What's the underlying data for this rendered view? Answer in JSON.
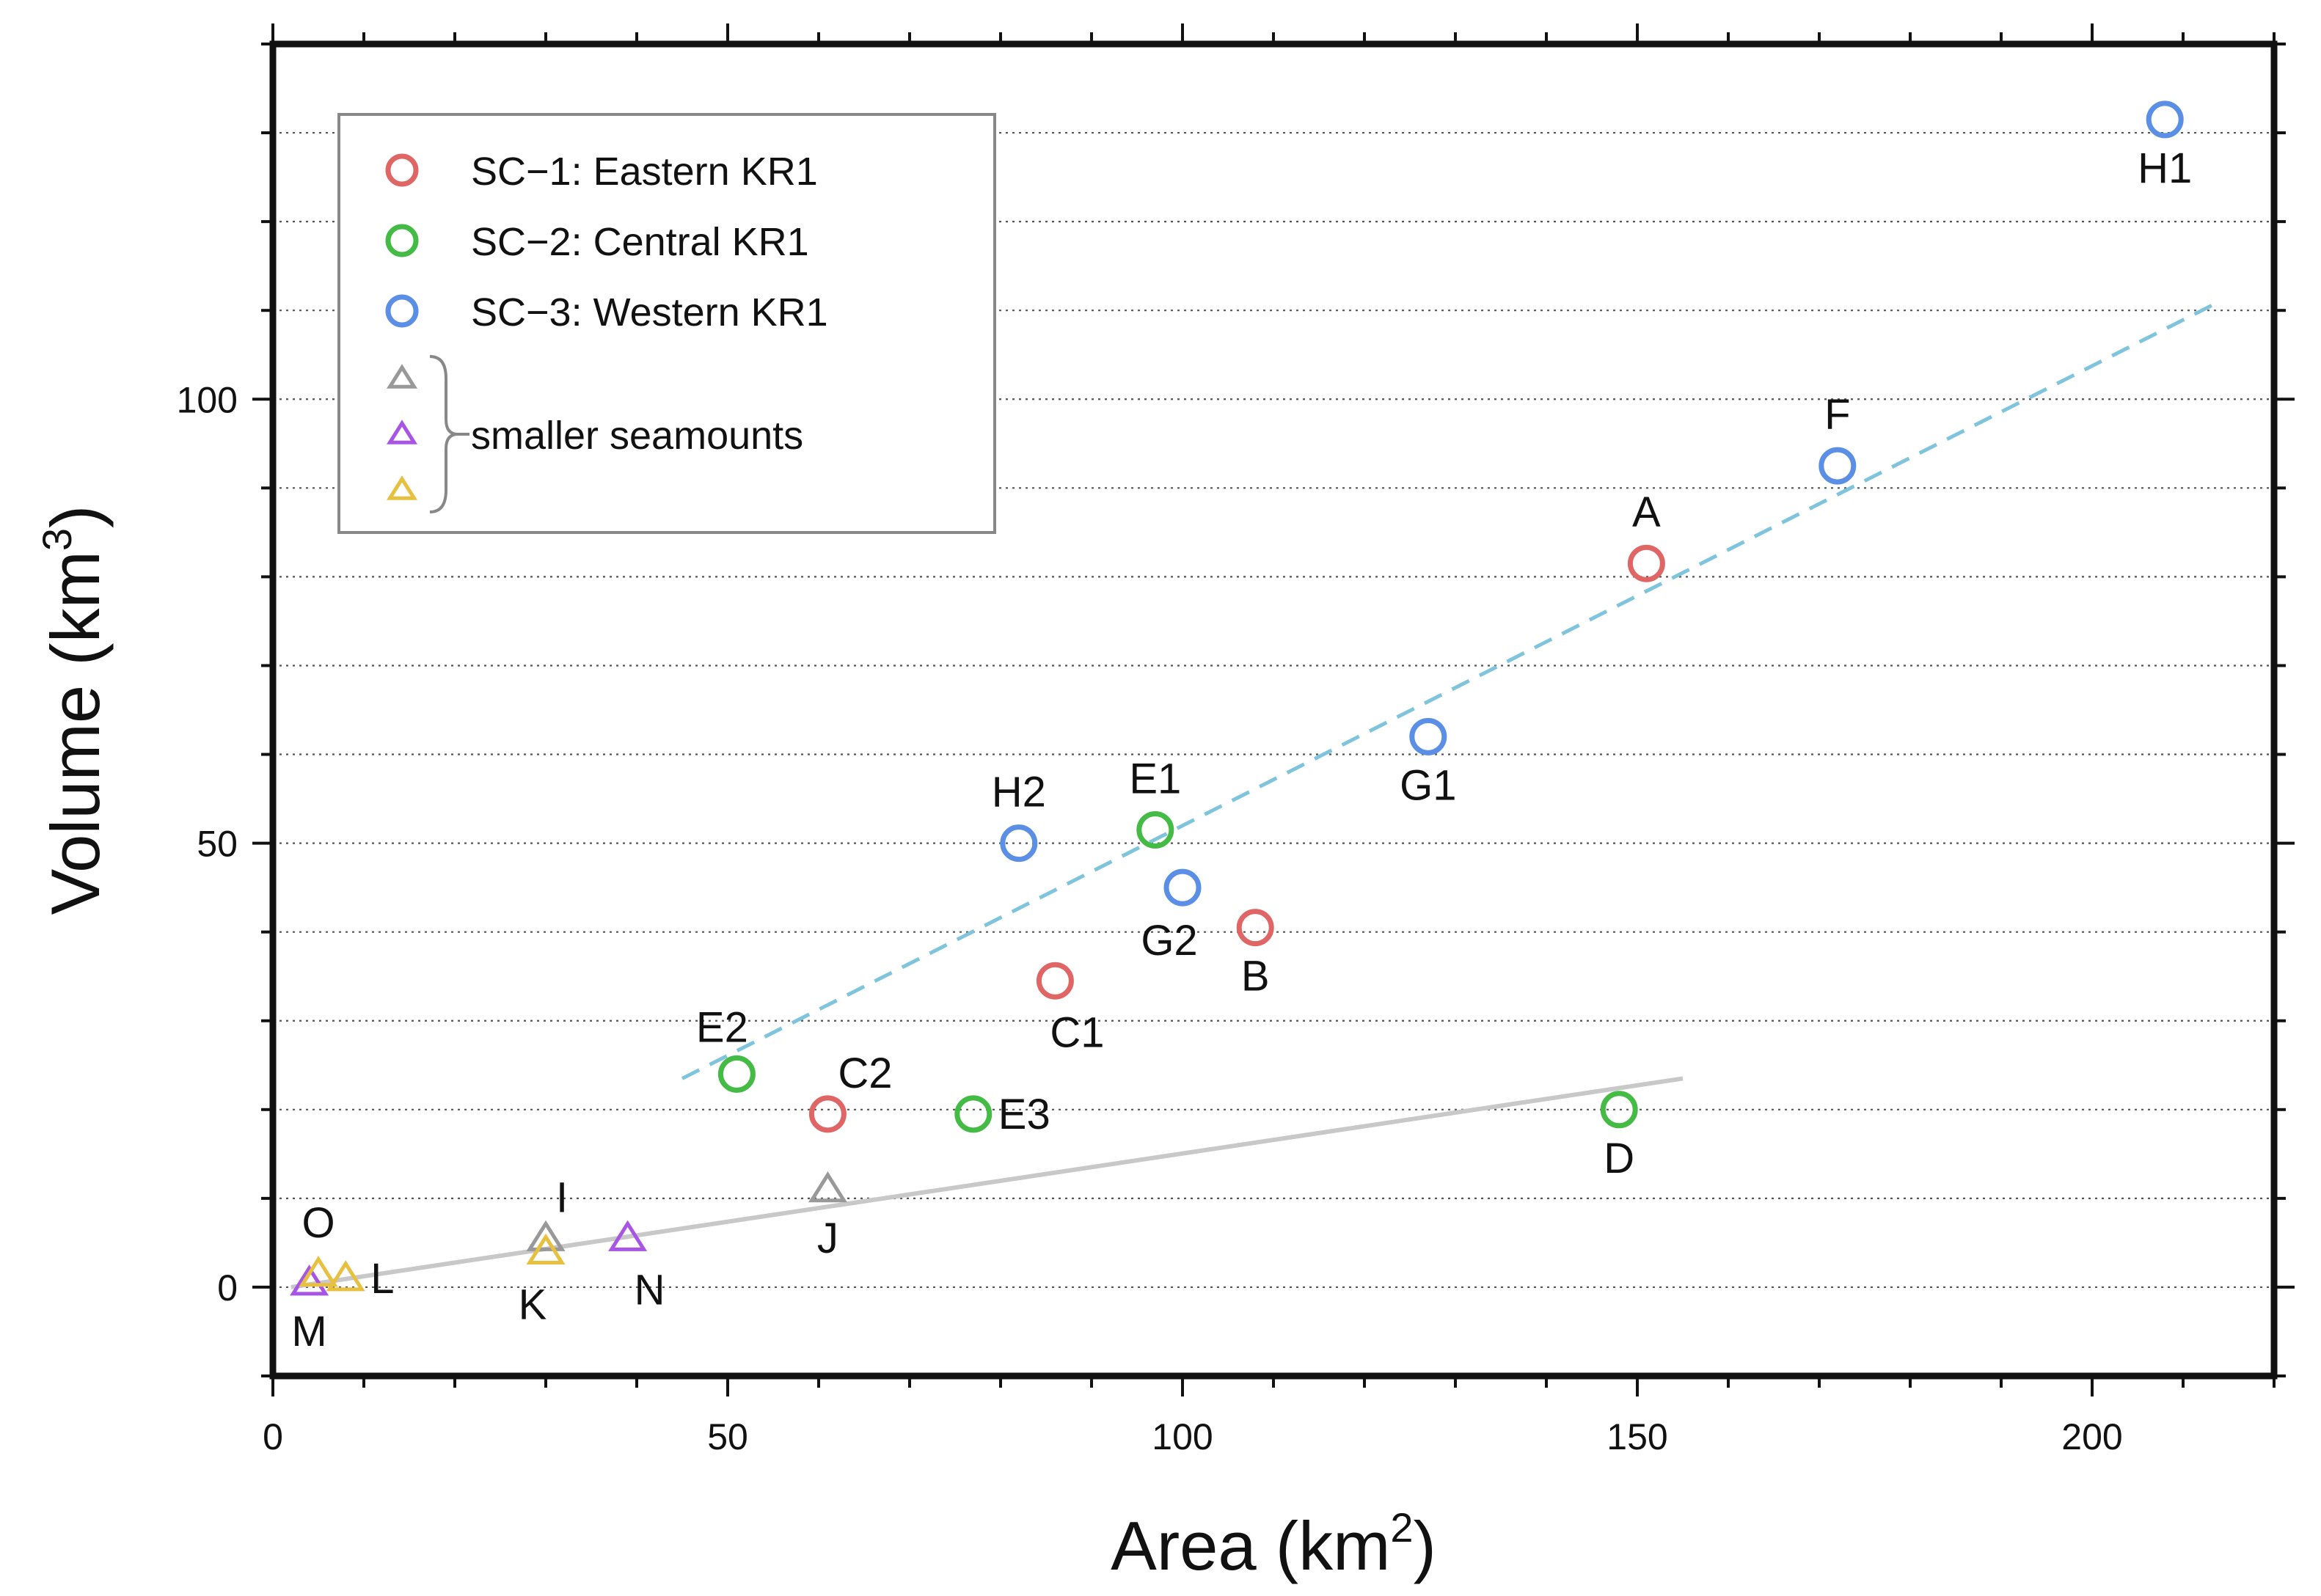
{
  "chart_data": {
    "type": "scatter",
    "xlabel": "Area (km",
    "xlabel_sup": "2",
    "xlabel_end": ")",
    "ylabel": "Volume (km",
    "ylabel_sup": "3",
    "ylabel_end": ")",
    "xlim": [
      0,
      220
    ],
    "ylim": [
      -10,
      140
    ],
    "x_ticks": [
      0,
      50,
      100,
      150,
      200
    ],
    "x_tick_labels": [
      "0",
      "50",
      "100",
      "150",
      "200"
    ],
    "y_ticks": [
      0,
      50,
      100
    ],
    "y_tick_labels": [
      "0",
      "50",
      "100"
    ],
    "grid": "horizontal-dotted",
    "legend_position": "top-left",
    "legend": {
      "entries": [
        {
          "label": "SC−1: Eastern KR1",
          "marker": "circle",
          "color": "#e06666"
        },
        {
          "label": "SC−2: Central KR1",
          "marker": "circle",
          "color": "#44bb44"
        },
        {
          "label": "SC−3: Western KR1",
          "marker": "circle",
          "color": "#5b8fe6"
        }
      ],
      "group_label": "smaller seamounts",
      "group_markers": [
        {
          "marker": "triangle",
          "color": "#999999"
        },
        {
          "marker": "triangle",
          "color": "#a855e6"
        },
        {
          "marker": "triangle",
          "color": "#e8c040"
        }
      ]
    },
    "series": [
      {
        "name": "SC−1: Eastern KR1",
        "marker": "circle",
        "color": "#e06666",
        "points": [
          {
            "x": 151,
            "y": 81.5,
            "label": "A",
            "label_pos": "above"
          },
          {
            "x": 108,
            "y": 40.5,
            "label": "B",
            "label_pos": "below"
          },
          {
            "x": 86,
            "y": 34.5,
            "label": "C1",
            "label_pos": "below-right"
          },
          {
            "x": 61,
            "y": 19.5,
            "label": "C2",
            "label_pos": "above-right"
          }
        ]
      },
      {
        "name": "SC−2: Central KR1",
        "marker": "circle",
        "color": "#44bb44",
        "points": [
          {
            "x": 97,
            "y": 51.5,
            "label": "E1",
            "label_pos": "above"
          },
          {
            "x": 51,
            "y": 24,
            "label": "E2",
            "label_pos": "above-left"
          },
          {
            "x": 77,
            "y": 19.5,
            "label": "E3",
            "label_pos": "right"
          },
          {
            "x": 148,
            "y": 20,
            "label": "D",
            "label_pos": "below"
          }
        ]
      },
      {
        "name": "SC−3: Western KR1",
        "marker": "circle",
        "color": "#5b8fe6",
        "points": [
          {
            "x": 208,
            "y": 131.5,
            "label": "H1",
            "label_pos": "below"
          },
          {
            "x": 172,
            "y": 92.5,
            "label": "F",
            "label_pos": "above"
          },
          {
            "x": 127,
            "y": 62,
            "label": "G1",
            "label_pos": "below"
          },
          {
            "x": 100,
            "y": 45,
            "label": "G2",
            "label_pos": "below-left"
          },
          {
            "x": 82,
            "y": 50,
            "label": "H2",
            "label_pos": "above"
          }
        ]
      },
      {
        "name": "smaller seamounts (gray)",
        "marker": "triangle",
        "color": "#999999",
        "points": [
          {
            "x": 30,
            "y": 5.5,
            "label": "I",
            "label_pos": "above-right"
          },
          {
            "x": 61,
            "y": 11,
            "label": "J",
            "label_pos": "below"
          }
        ]
      },
      {
        "name": "smaller seamounts (purple)",
        "marker": "triangle",
        "color": "#a855e6",
        "points": [
          {
            "x": 4,
            "y": 0.5,
            "label": "M",
            "label_pos": "below"
          },
          {
            "x": 39,
            "y": 5.5,
            "label": "N",
            "label_pos": "below-right"
          }
        ]
      },
      {
        "name": "smaller seamounts (yellow)",
        "marker": "triangle",
        "color": "#e8c040",
        "points": [
          {
            "x": 5,
            "y": 1.5,
            "label": "O",
            "label_pos": "above"
          },
          {
            "x": 8,
            "y": 1,
            "label": "L",
            "label_pos": "right"
          },
          {
            "x": 30,
            "y": 4,
            "label": "K",
            "label_pos": "below-left"
          }
        ]
      }
    ],
    "fit_lines": [
      {
        "name": "SC-3 trend",
        "style": "dashed",
        "color": "#7ec4dc",
        "x": [
          45,
          214
        ],
        "y": [
          23.5,
          111
        ]
      },
      {
        "name": "small seamounts trend",
        "style": "solid",
        "color": "#c8c8c8",
        "x": [
          2,
          155
        ],
        "y": [
          0,
          23.5
        ]
      }
    ]
  }
}
